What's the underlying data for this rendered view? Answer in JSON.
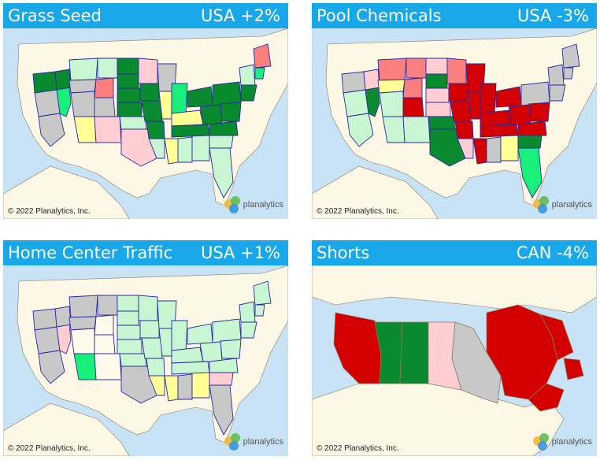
{
  "colors": {
    "dark_green": "#0a8a2e",
    "bright_green": "#19f07a",
    "light_green": "#c8f5d2",
    "gray": "#c8c8c8",
    "light_pink": "#ffcdd2",
    "salmon": "#fa8080",
    "red": "#d20000",
    "yellow": "#ffff96",
    "cream": "#fffaeb",
    "land": "#fdf8e6",
    "water": "#c8e3f5",
    "title_bar": "#18a7e8"
  },
  "logo": {
    "word": "planalytics"
  },
  "panels": [
    {
      "title": "Grass Seed",
      "change": "USA +2%",
      "copyright": "© 2022 Planalytics, Inc.",
      "map_region": "USA"
    },
    {
      "title": "Pool Chemicals",
      "change": "USA -3%",
      "copyright": "© 2022 Planalytics, Inc.",
      "map_region": "USA"
    },
    {
      "title": "Home Center Traffic",
      "change": "USA +1%",
      "copyright": "© 2022 Planalytics, Inc.",
      "map_region": "USA"
    },
    {
      "title": "Shorts",
      "change": "CAN -4%",
      "copyright": "© 2022 Planalytics, Inc.",
      "map_region": "CAN"
    }
  ]
}
